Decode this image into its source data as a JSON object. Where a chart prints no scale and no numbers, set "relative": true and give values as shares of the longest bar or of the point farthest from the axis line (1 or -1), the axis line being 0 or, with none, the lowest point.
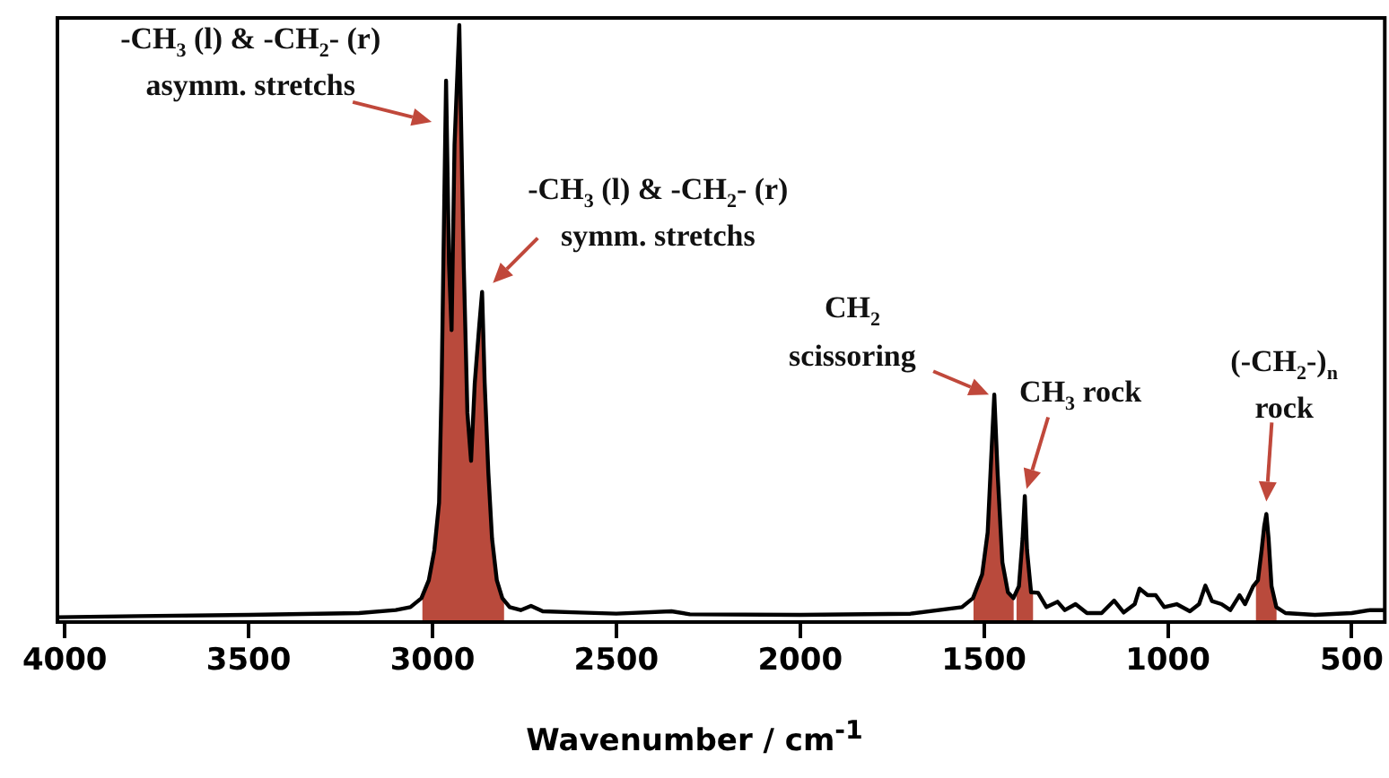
{
  "chart_data": {
    "type": "line",
    "xlabel": "Wavenumber / cm$^{-1}$",
    "relative": true,
    "xlim": [
      4020,
      410
    ],
    "xticks": [
      4000,
      3500,
      3000,
      2500,
      2000,
      1500,
      1000,
      500
    ],
    "legend": false,
    "series": [
      {
        "type": "line",
        "color": "#000000",
        "x": [
          4020,
          3800,
          3500,
          3200,
          3100,
          3060,
          3030,
          3010,
          2995,
          2982,
          2975,
          2968,
          2963,
          2955,
          2948,
          2940,
          2927,
          2915,
          2905,
          2895,
          2885,
          2873,
          2865,
          2858,
          2848,
          2838,
          2825,
          2810,
          2790,
          2760,
          2732,
          2700,
          2600,
          2500,
          2350,
          2300,
          2000,
          1700,
          1560,
          1530,
          1505,
          1490,
          1480,
          1472,
          1463,
          1450,
          1435,
          1420,
          1405,
          1395,
          1389,
          1383,
          1372,
          1353,
          1330,
          1300,
          1280,
          1251,
          1220,
          1180,
          1146,
          1120,
          1090,
          1077,
          1055,
          1033,
          1010,
          976,
          940,
          915,
          898,
          880,
          854,
          830,
          805,
          790,
          768,
          755,
          745,
          738,
          732,
          726,
          718,
          705,
          680,
          600,
          500,
          450,
          410
        ],
        "values": [
          0.008,
          0.01,
          0.012,
          0.015,
          0.02,
          0.025,
          0.04,
          0.07,
          0.12,
          0.2,
          0.4,
          0.7,
          0.907,
          0.6,
          0.489,
          0.8,
          1.0,
          0.6,
          0.35,
          0.27,
          0.4,
          0.495,
          0.553,
          0.4,
          0.25,
          0.14,
          0.07,
          0.04,
          0.025,
          0.02,
          0.027,
          0.018,
          0.016,
          0.014,
          0.018,
          0.013,
          0.012,
          0.014,
          0.025,
          0.04,
          0.08,
          0.15,
          0.28,
          0.381,
          0.25,
          0.1,
          0.05,
          0.04,
          0.06,
          0.14,
          0.211,
          0.12,
          0.05,
          0.049,
          0.025,
          0.034,
          0.02,
          0.03,
          0.015,
          0.015,
          0.036,
          0.016,
          0.03,
          0.056,
          0.045,
          0.045,
          0.025,
          0.03,
          0.018,
          0.03,
          0.061,
          0.035,
          0.03,
          0.02,
          0.045,
          0.03,
          0.06,
          0.07,
          0.12,
          0.16,
          0.181,
          0.14,
          0.06,
          0.025,
          0.015,
          0.012,
          0.015,
          0.02,
          0.02
        ]
      },
      {
        "type": "area",
        "color": "#b94a3c",
        "x": [
          3028,
          3010,
          2995,
          2982,
          2975,
          2968,
          2963,
          2955,
          2948,
          2940,
          2927,
          2915,
          2905,
          2895,
          2885,
          2873,
          2865,
          2858,
          2848,
          2838,
          2825,
          2810,
          2805
        ],
        "values": [
          0.042,
          0.07,
          0.12,
          0.2,
          0.4,
          0.7,
          0.907,
          0.6,
          0.489,
          0.8,
          1.0,
          0.6,
          0.35,
          0.27,
          0.4,
          0.495,
          0.553,
          0.4,
          0.25,
          0.14,
          0.07,
          0.04,
          0.037
        ]
      },
      {
        "type": "area",
        "color": "#b94a3c",
        "x": [
          1529,
          1505,
          1490,
          1480,
          1472,
          1463,
          1450,
          1435,
          1419
        ],
        "values": [
          0.041,
          0.08,
          0.15,
          0.28,
          0.381,
          0.25,
          0.1,
          0.05,
          0.041
        ]
      },
      {
        "type": "area",
        "color": "#b94a3c",
        "x": [
          1412,
          1405,
          1395,
          1389,
          1383,
          1372,
          1366
        ],
        "values": [
          0.048,
          0.06,
          0.14,
          0.211,
          0.12,
          0.05,
          0.049
        ]
      },
      {
        "type": "area",
        "color": "#b94a3c",
        "x": [
          761,
          755,
          745,
          738,
          732,
          726,
          718,
          704
        ],
        "values": [
          0.062,
          0.07,
          0.12,
          0.16,
          0.181,
          0.14,
          0.06,
          0.026
        ]
      }
    ],
    "annotations": [
      {
        "text": "-CH$_{3}$ (l) & -CH$_{2}$- (r)\nasymm. stretchs",
        "x": 2963,
        "y": 0.907
      },
      {
        "text": "-CH$_{3}$ (l) & -CH$_{2}$- (r)\nsymm. stretchs",
        "x": 2865,
        "y": 0.553
      },
      {
        "text": "CH$_{2}$\nscissoring",
        "x": 1472,
        "y": 0.381
      },
      {
        "text": "CH$_{3}$ rock",
        "x": 1389,
        "y": 0.211
      },
      {
        "text": "(-CH$_{2}$-)$_{n}$\nrock",
        "x": 732,
        "y": 0.181
      }
    ]
  }
}
